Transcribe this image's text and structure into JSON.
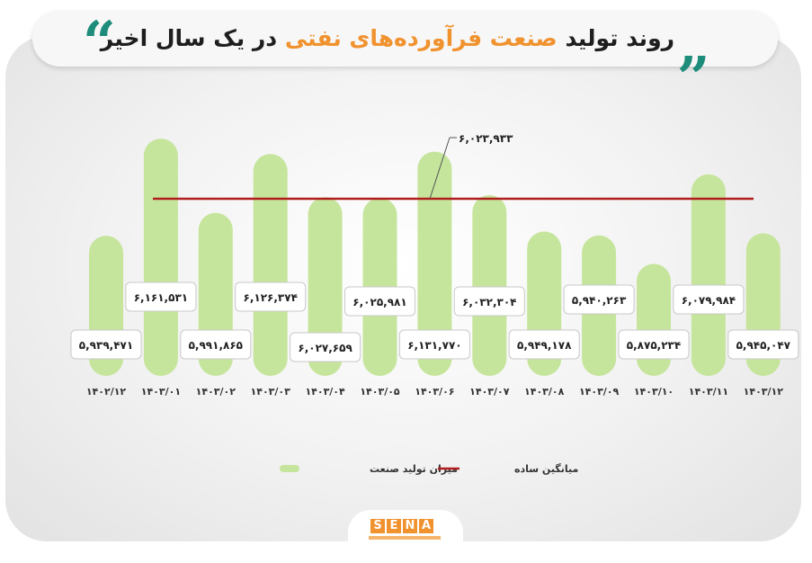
{
  "title": {
    "part1": "روند تولید",
    "highlight": "صنعت فرآورده‌های نفتی",
    "part2": "در یک سال اخیر"
  },
  "quote_glyph": "“",
  "colors": {
    "bar": "#c6e59c",
    "average_line": "#b01e1e",
    "accent": "#f0922e",
    "quote": "#1d8c7a"
  },
  "chart_data": {
    "type": "bar",
    "categories": [
      "۱۴۰۲/۱۲",
      "۱۴۰۳/۰۱",
      "۱۴۰۳/۰۲",
      "۱۴۰۳/۰۳",
      "۱۴۰۳/۰۴",
      "۱۴۰۳/۰۵",
      "۱۴۰۳/۰۶",
      "۱۴۰۳/۰۷",
      "۱۴۰۳/۰۸",
      "۱۴۰۳/۰۹",
      "۱۴۰۳/۱۰",
      "۱۴۰۳/۱۱",
      "۱۴۰۳/۱۲"
    ],
    "series": [
      {
        "name": "میزان تولید صنعت",
        "values": [
          5939471,
          6161531,
          5991865,
          6126374,
          6027659,
          6025981,
          6131770,
          6032304,
          5949178,
          5940263,
          5875234,
          6079984,
          5945047
        ],
        "labels": [
          "۵,۹۳۹,۴۷۱",
          "۶,۱۶۱,۵۳۱",
          "۵,۹۹۱,۸۶۵",
          "۶,۱۲۶,۳۷۴",
          "۶,۰۲۷,۶۵۹",
          "۶,۰۲۵,۹۸۱",
          "۶,۱۳۱,۷۷۰",
          "۶,۰۳۲,۳۰۴",
          "۵,۹۴۹,۱۷۸",
          "۵,۹۴۰,۲۶۳",
          "۵,۸۷۵,۲۳۴",
          "۶,۰۷۹,۹۸۴",
          "۵,۹۴۵,۰۴۷"
        ]
      }
    ],
    "average": {
      "name": "میانگین ساده",
      "value": 6023933,
      "label": "۶,۰۲۳,۹۳۳"
    },
    "legend_position": "bottom",
    "grid": false
  },
  "logo": {
    "letters": [
      "S",
      "E",
      "N",
      "A"
    ]
  }
}
